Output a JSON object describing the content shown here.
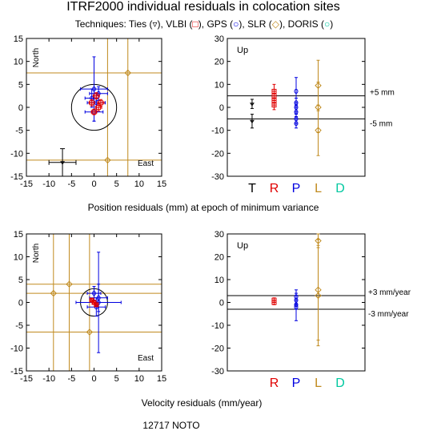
{
  "title": "ITRF2000 individual residuals in colocation sites",
  "techniques": {
    "prefix": "Techniques:",
    "items": [
      {
        "label": "Ties",
        "symbol": "▿",
        "color": "#000000"
      },
      {
        "label": "VLBI",
        "symbol": "□",
        "color": "#e00000"
      },
      {
        "label": "GPS",
        "symbol": "○",
        "color": "#0000e0"
      },
      {
        "label": "SLR",
        "symbol": "◇",
        "color": "#c08a1e"
      },
      {
        "label": "DORIS",
        "symbol": "○",
        "color": "#00c8a0"
      }
    ]
  },
  "footer": "12717 NOTO",
  "chart_data": [
    {
      "type": "scatter",
      "panel": "position-horizontal",
      "xlabel": "Position residuals (mm) at epoch of minimum variance",
      "labels": {
        "north": "North",
        "east": "East"
      },
      "xlim": [
        -15,
        15
      ],
      "ylim": [
        -15,
        15
      ],
      "xticks": [
        "-15",
        "-10",
        "-5",
        "0",
        "5",
        "10",
        "15"
      ],
      "yticks": [
        "15",
        "10",
        "5",
        "0",
        "-5",
        "-10",
        "-15"
      ],
      "circle_radius": 5,
      "ties": [
        {
          "x": -7,
          "y": -12,
          "ex": 3,
          "ey": 3
        }
      ],
      "vlbi": [
        {
          "x": 0.5,
          "y": 2.5,
          "ex": 0.7,
          "ey": 0.7
        },
        {
          "x": 1,
          "y": 0,
          "ex": 0.7,
          "ey": 0.8
        },
        {
          "x": 0,
          "y": -1,
          "ex": 0.6,
          "ey": 0.6
        },
        {
          "x": 1.5,
          "y": 1,
          "ex": 0.7,
          "ey": 0.7
        },
        {
          "x": -0.5,
          "y": 1,
          "ex": 0.6,
          "ey": 0.7
        }
      ],
      "gps": [
        {
          "x": 0,
          "y": 4,
          "ex": 3,
          "ey": 7
        },
        {
          "x": 0.5,
          "y": 1,
          "ex": 2,
          "ey": 2
        },
        {
          "x": -0.5,
          "y": 2,
          "ex": 1.5,
          "ey": 2
        },
        {
          "x": 1,
          "y": 3,
          "ex": 2,
          "ey": 1.5
        },
        {
          "x": 0,
          "y": -1,
          "ex": 2,
          "ey": 2
        }
      ],
      "slr": [
        {
          "x": 7.5,
          "y": 7.5
        },
        {
          "x": 3,
          "y": -11.5
        }
      ],
      "slr_lines": {
        "x": [
          3,
          7.5
        ],
        "y": [
          7.5,
          -11.5
        ]
      }
    },
    {
      "type": "scatter",
      "panel": "position-up",
      "label": "Up",
      "ylim": [
        -30,
        30
      ],
      "yticks": [
        "30",
        "20",
        "10",
        "0",
        "-10",
        "-20",
        "-30"
      ],
      "categories": [
        "T",
        "R",
        "P",
        "L",
        "D"
      ],
      "category_colors": [
        "#000000",
        "#e00000",
        "#0000e0",
        "#c08a1e",
        "#00c8a0"
      ],
      "threshold_labels": [
        "+5 mm",
        "-5 mm"
      ],
      "thresholds": [
        5,
        -5
      ],
      "values": {
        "T": [
          {
            "y": 1.5,
            "e": 2
          },
          {
            "y": -6,
            "e": 3
          }
        ],
        "R": [
          {
            "y": 7,
            "e": 3
          },
          {
            "y": 5,
            "e": 2
          },
          {
            "y": 1,
            "e": 2
          },
          {
            "y": 3,
            "e": 2
          }
        ],
        "P": [
          {
            "y": 7,
            "e": 6
          },
          {
            "y": 2,
            "e": 2
          },
          {
            "y": -2,
            "e": 2
          },
          {
            "y": -5,
            "e": 2
          },
          {
            "y": -7,
            "e": 2
          },
          {
            "y": 0,
            "e": 2
          }
        ],
        "L": [
          {
            "y": 9.5,
            "e": 11
          },
          {
            "y": 0,
            "e": 11
          },
          {
            "y": -10,
            "e": 11
          }
        ],
        "D": []
      }
    },
    {
      "type": "scatter",
      "panel": "velocity-horizontal",
      "xlabel": "Velocity residuals (mm/year)",
      "labels": {
        "north": "North",
        "east": "East"
      },
      "xlim": [
        -15,
        15
      ],
      "ylim": [
        -15,
        15
      ],
      "xticks": [
        "-15",
        "-10",
        "-5",
        "0",
        "5",
        "10",
        "15"
      ],
      "yticks": [
        "15",
        "10",
        "5",
        "0",
        "-5",
        "-10",
        "-15"
      ],
      "circle_radius": 3,
      "vlbi": [
        {
          "x": 0,
          "y": 0,
          "ex": 0.3,
          "ey": 0.3
        },
        {
          "x": -0.5,
          "y": 0.5,
          "ex": 0.3,
          "ey": 0.3
        },
        {
          "x": 0.5,
          "y": -0.5,
          "ex": 0.3,
          "ey": 0.3
        }
      ],
      "gps": [
        {
          "x": 1,
          "y": 0,
          "ex": 5,
          "ey": 11
        },
        {
          "x": 1,
          "y": 1,
          "ex": 2,
          "ey": 3
        },
        {
          "x": 0,
          "y": 2,
          "ex": 1.5,
          "ey": 1.5
        },
        {
          "x": 0.5,
          "y": -1,
          "ex": 2,
          "ey": 2
        }
      ],
      "slr": [
        {
          "x": -5.5,
          "y": 4
        },
        {
          "x": -9,
          "y": 2
        },
        {
          "x": -1,
          "y": -6.5
        }
      ],
      "slr_lines": {
        "x": [
          -9,
          -5.5,
          -1
        ],
        "y": [
          4,
          2,
          -6.5
        ]
      }
    },
    {
      "type": "scatter",
      "panel": "velocity-up",
      "label": "Up",
      "ylim": [
        -30,
        30
      ],
      "yticks": [
        "30",
        "20",
        "10",
        "0",
        "-10",
        "-20",
        "-30"
      ],
      "categories": [
        "T",
        "R",
        "P",
        "L",
        "D"
      ],
      "category_colors": [
        "#000000",
        "#e00000",
        "#0000e0",
        "#c08a1e",
        "#00c8a0"
      ],
      "visible_categories": [
        "R",
        "P",
        "L",
        "D"
      ],
      "threshold_labels": [
        "+3 mm/year",
        "-3 mm/year"
      ],
      "thresholds": [
        3,
        -3
      ],
      "values": {
        "T": [],
        "R": [
          {
            "y": 1,
            "e": 1
          },
          {
            "y": 0,
            "e": 1
          }
        ],
        "P": [
          {
            "y": 1,
            "e": 2
          },
          {
            "y": 2.5,
            "e": 3
          },
          {
            "y": -2,
            "e": 6
          },
          {
            "y": -1,
            "e": 2
          }
        ],
        "L": [
          {
            "y": 27,
            "e": 3
          },
          {
            "y": 5.5,
            "e": 22
          },
          {
            "y": 3,
            "e": 22
          }
        ],
        "D": []
      }
    }
  ]
}
